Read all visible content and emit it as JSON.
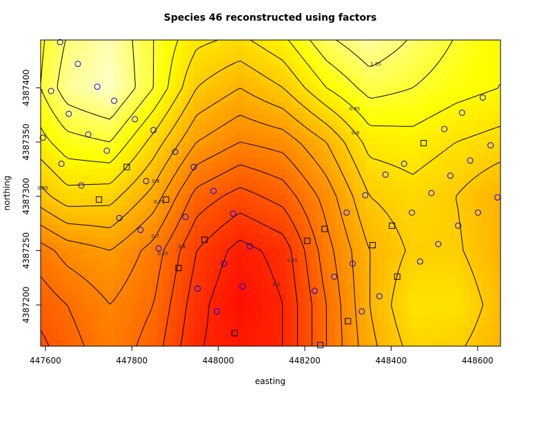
{
  "chart_data": {
    "type": "contour",
    "title": "Species 46 reconstructed using factors",
    "x_label": "easting",
    "y_label": "northing",
    "xlim": [
      447589,
      448653
    ],
    "ylim": [
      4387162,
      4387444
    ],
    "xticks": [
      447600,
      447800,
      448000,
      448200,
      448400,
      448600
    ],
    "yticks": [
      4387200,
      4387250,
      4387300,
      4387350,
      4387400
    ],
    "grid_x": [
      447550,
      447650,
      447750,
      447850,
      447950,
      448050,
      448150,
      448250,
      448350,
      448450,
      448550,
      448650
    ],
    "grid_y": [
      4387450,
      4387400,
      4387350,
      4387300,
      4387250,
      4387200,
      4387150
    ],
    "z": [
      [
        0.95,
        1.05,
        1.1,
        1.0,
        0.92,
        0.9,
        0.95,
        1.05,
        1.1,
        1.05,
        1.0,
        0.95
      ],
      [
        0.95,
        1.08,
        1.12,
        1.0,
        0.85,
        0.8,
        0.85,
        0.95,
        1.02,
        1.0,
        0.97,
        0.95
      ],
      [
        0.9,
        0.98,
        1.0,
        0.88,
        0.75,
        0.7,
        0.72,
        0.8,
        0.92,
        0.93,
        0.9,
        0.88
      ],
      [
        0.8,
        0.88,
        0.87,
        0.78,
        0.63,
        0.58,
        0.62,
        0.72,
        0.85,
        0.88,
        0.85,
        0.8
      ],
      [
        0.65,
        0.72,
        0.75,
        0.68,
        0.55,
        0.48,
        0.52,
        0.68,
        0.8,
        0.86,
        0.86,
        0.8
      ],
      [
        0.6,
        0.65,
        0.7,
        0.65,
        0.52,
        0.45,
        0.5,
        0.65,
        0.8,
        0.9,
        0.9,
        0.82
      ],
      [
        0.55,
        0.62,
        0.68,
        0.62,
        0.5,
        0.48,
        0.5,
        0.65,
        0.78,
        0.86,
        0.85,
        0.8
      ]
    ],
    "zlim": [
      0.42,
      1.14
    ],
    "levels": [
      0.45,
      0.5,
      0.55,
      0.6,
      0.65,
      0.7,
      0.75,
      0.8,
      0.85,
      0.9,
      0.95,
      1,
      1.05
    ],
    "points": [
      {
        "marker": "circle",
        "color": "#0000ff",
        "x": [
          447634,
          447613,
          447675,
          447720,
          447759,
          447654,
          447699,
          447742,
          447807,
          447850,
          447594,
          447637,
          447683,
          447771,
          447820,
          447833,
          447900,
          447943,
          447862,
          447924,
          447989,
          448034,
          447952,
          447997,
          448013,
          448056,
          448073,
          448223,
          448268,
          448311,
          448332,
          448373,
          448297,
          448340,
          448387,
          448430,
          448448,
          448493,
          448467,
          448509,
          448523,
          448537,
          448555,
          448564,
          448583,
          448601,
          448612,
          448630,
          448646
        ],
        "y": [
          4387442,
          4387397,
          4387422,
          4387401,
          4387388,
          4387376,
          4387357,
          4387342,
          4387371,
          4387361,
          4387354,
          4387330,
          4387310,
          4387280,
          4387269,
          4387314,
          4387341,
          4387327,
          4387252,
          4387281,
          4387305,
          4387284,
          4387215,
          4387194,
          4387238,
          4387217,
          4387254,
          4387213,
          4387226,
          4387238,
          4387194,
          4387208,
          4387285,
          4387301,
          4387320,
          4387330,
          4387285,
          4387303,
          4387240,
          4387256,
          4387362,
          4387319,
          4387273,
          4387377,
          4387333,
          4387285,
          4387391,
          4387347,
          4387299
        ]
      },
      {
        "marker": "square",
        "color": "#000000",
        "x": [
          448475,
          447788,
          447724,
          447879,
          448246,
          448402,
          447968,
          448206,
          448357,
          447908,
          448414,
          448300,
          448038,
          448236
        ],
        "y": [
          4387349,
          4387327,
          4387297,
          4387297,
          4387270,
          4387273,
          4387260,
          4387259,
          4387255,
          4387234,
          4387226,
          4387185,
          4387174,
          4387163
        ]
      }
    ]
  }
}
